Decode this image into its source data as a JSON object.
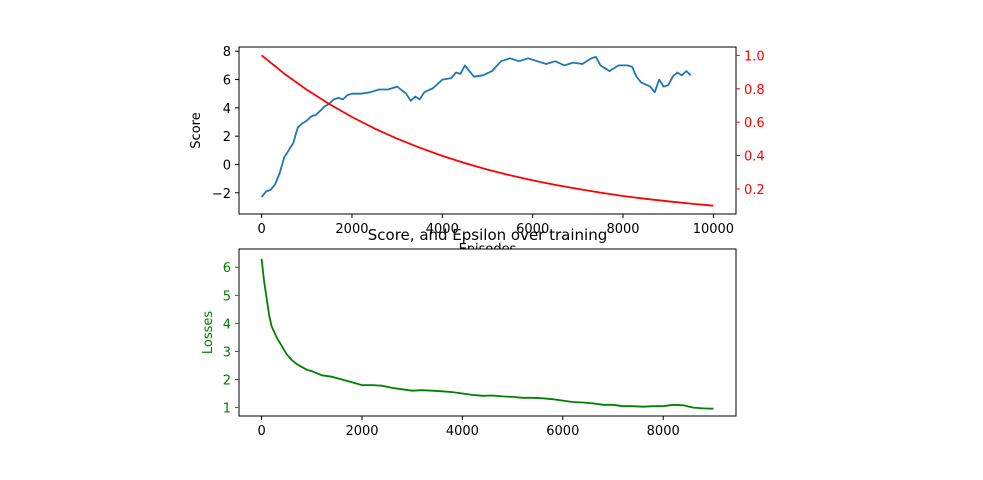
{
  "chart_data": [
    {
      "type": "line",
      "xlabel": "Episodes",
      "ylabel": "Score",
      "y2label": "",
      "xlim": [
        -500,
        10500
      ],
      "ylim": [
        -3.5,
        8.3
      ],
      "y2lim": [
        0.05,
        1.05
      ],
      "xticks": [
        0,
        2000,
        4000,
        6000,
        8000,
        10000
      ],
      "yticks": [
        -2,
        0,
        2,
        4,
        6,
        8
      ],
      "y2ticks": [
        0.2,
        0.4,
        0.6,
        0.8,
        1.0
      ],
      "grid": false,
      "colors": {
        "score": "#1f77b4",
        "epsilon": "#ff0000"
      },
      "series": [
        {
          "axis": "left",
          "color": "#1f77b4",
          "x": [
            0,
            100,
            200,
            300,
            400,
            500,
            600,
            700,
            800,
            900,
            1000,
            1100,
            1200,
            1300,
            1400,
            1500,
            1600,
            1700,
            1800,
            1900,
            2000,
            2200,
            2400,
            2600,
            2800,
            3000,
            3200,
            3300,
            3400,
            3500,
            3600,
            3800,
            4000,
            4200,
            4300,
            4400,
            4500,
            4700,
            4900,
            5100,
            5300,
            5500,
            5700,
            5900,
            6100,
            6300,
            6500,
            6700,
            6900,
            7100,
            7300,
            7400,
            7500,
            7700,
            7900,
            8100,
            8200,
            8300,
            8400,
            8600,
            8700,
            8800,
            8900,
            9000,
            9100,
            9200,
            9300,
            9400,
            9500
          ],
          "y": [
            -2.3,
            -1.9,
            -1.8,
            -1.4,
            -0.6,
            0.5,
            1.0,
            1.5,
            2.6,
            2.9,
            3.1,
            3.4,
            3.5,
            3.8,
            4.1,
            4.3,
            4.6,
            4.7,
            4.6,
            4.9,
            5.0,
            5.0,
            5.1,
            5.3,
            5.3,
            5.5,
            5.0,
            4.5,
            4.8,
            4.6,
            5.1,
            5.4,
            6.0,
            6.1,
            6.5,
            6.4,
            7.0,
            6.2,
            6.3,
            6.6,
            7.3,
            7.5,
            7.3,
            7.5,
            7.3,
            7.1,
            7.3,
            7.0,
            7.2,
            7.1,
            7.5,
            7.6,
            7.0,
            6.6,
            7.0,
            7.0,
            6.9,
            6.2,
            5.8,
            5.5,
            5.1,
            6.0,
            5.5,
            5.6,
            6.2,
            6.5,
            6.3,
            6.6,
            6.3
          ]
        },
        {
          "axis": "right",
          "color": "#ff0000",
          "x": [
            0,
            500,
            1000,
            1500,
            2000,
            2500,
            3000,
            3500,
            4000,
            4500,
            5000,
            5500,
            6000,
            6500,
            7000,
            7500,
            8000,
            8500,
            9000,
            9500,
            10000
          ],
          "y": [
            1.0,
            0.891,
            0.794,
            0.708,
            0.631,
            0.562,
            0.501,
            0.447,
            0.398,
            0.355,
            0.316,
            0.282,
            0.251,
            0.224,
            0.2,
            0.178,
            0.158,
            0.141,
            0.126,
            0.112,
            0.1
          ]
        }
      ]
    },
    {
      "type": "line",
      "title": "Score, and Epsilon over training",
      "xlabel": "",
      "ylabel": "Losses",
      "xlim": [
        -450,
        9450
      ],
      "ylim": [
        0.7,
        6.65
      ],
      "xticks": [
        0,
        2000,
        4000,
        6000,
        8000
      ],
      "yticks": [
        1,
        2,
        3,
        4,
        5,
        6
      ],
      "grid": false,
      "colors": {
        "losses": "#008000"
      },
      "series": [
        {
          "color": "#008000",
          "x": [
            0,
            50,
            100,
            150,
            200,
            300,
            400,
            500,
            600,
            700,
            800,
            900,
            1000,
            1200,
            1400,
            1600,
            1800,
            2000,
            2200,
            2400,
            2600,
            2800,
            3000,
            3200,
            3400,
            3600,
            3800,
            4000,
            4200,
            4400,
            4600,
            4800,
            5000,
            5200,
            5400,
            5600,
            5800,
            6000,
            6200,
            6400,
            6600,
            6800,
            7000,
            7200,
            7400,
            7600,
            7800,
            8000,
            8200,
            8400,
            8600,
            8800,
            9000
          ],
          "y": [
            6.3,
            5.5,
            4.9,
            4.3,
            3.9,
            3.5,
            3.2,
            2.9,
            2.7,
            2.55,
            2.45,
            2.35,
            2.3,
            2.15,
            2.1,
            2.0,
            1.9,
            1.8,
            1.8,
            1.78,
            1.7,
            1.65,
            1.6,
            1.62,
            1.6,
            1.58,
            1.55,
            1.5,
            1.45,
            1.42,
            1.43,
            1.4,
            1.38,
            1.35,
            1.35,
            1.33,
            1.3,
            1.25,
            1.2,
            1.18,
            1.15,
            1.1,
            1.1,
            1.05,
            1.05,
            1.03,
            1.05,
            1.05,
            1.1,
            1.08,
            1.0,
            0.97,
            0.96
          ]
        }
      ]
    }
  ]
}
